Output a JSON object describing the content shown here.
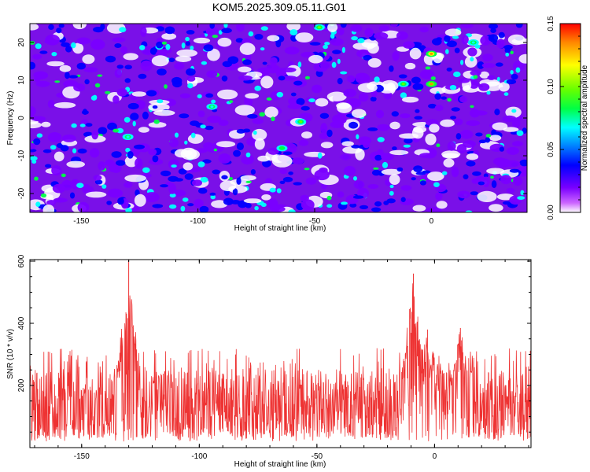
{
  "title": "KOM5.2025.309.05.11.G01",
  "chart_data": [
    {
      "type": "heatmap",
      "xlabel": "Height of straight line (km)",
      "ylabel": "Frequency (Hz)",
      "xlim": [
        -172,
        41
      ],
      "ylim": [
        -25,
        25
      ],
      "xticks": [
        -150,
        -100,
        -50,
        0
      ],
      "xtick_labels": [
        "-150",
        "-100",
        "-50",
        "0"
      ],
      "yticks": [
        -20,
        -10,
        0,
        10,
        20
      ],
      "ytick_labels": [
        "-20",
        "-10",
        "0",
        "10",
        "20"
      ],
      "colorbar": {
        "label": "Normalized spectral amplitude",
        "range": [
          0.0,
          0.15
        ],
        "ticks": [
          0.0,
          0.05,
          0.1,
          0.15
        ],
        "tick_labels": [
          "0.00",
          "0.05",
          "0.10",
          "0.15"
        ],
        "colormap": [
          "#ffffff",
          "#cc66ff",
          "#7a00ff",
          "#0000ff",
          "#0099ff",
          "#00ffff",
          "#00ff44",
          "#66ff00",
          "#ffff00",
          "#ff8800",
          "#ff0000"
        ]
      },
      "peaks": [
        {
          "x": 0,
          "y": 17,
          "amplitude": 0.14
        },
        {
          "x": 0,
          "y": 9,
          "amplitude": 0.13
        },
        {
          "x": -12,
          "y": 9,
          "amplitude": 0.1
        },
        {
          "x": -56,
          "y": -1,
          "amplitude": 0.1
        },
        {
          "x": -64,
          "y": -8,
          "amplitude": 0.09
        },
        {
          "x": -94,
          "y": 3,
          "amplitude": 0.08
        },
        {
          "x": -130,
          "y": -5,
          "amplitude": 0.08
        },
        {
          "x": 18,
          "y": 20,
          "amplitude": 0.08
        },
        {
          "x": -48,
          "y": 24,
          "amplitude": 0.1
        }
      ]
    },
    {
      "type": "line",
      "xlabel": "Height of straight line (km)",
      "ylabel": "SNR (10 * v/v)",
      "xlim": [
        -172,
        41
      ],
      "ylim": [
        0,
        605
      ],
      "xticks": [
        -150,
        -100,
        -50,
        0
      ],
      "xtick_labels": [
        "-150",
        "-100",
        "-50",
        "0"
      ],
      "yticks": [
        200,
        400,
        600
      ],
      "ytick_labels": [
        "200",
        "400",
        "600"
      ],
      "series": [
        {
          "name": "SNR",
          "color": "#ee3333",
          "baseline_range": [
            30,
            250
          ],
          "peaks": [
            {
              "x": -130,
              "y": 605
            },
            {
              "x": -9,
              "y": 560
            },
            {
              "x": -3,
              "y": 380
            },
            {
              "x": 11,
              "y": 385
            }
          ]
        }
      ]
    }
  ]
}
